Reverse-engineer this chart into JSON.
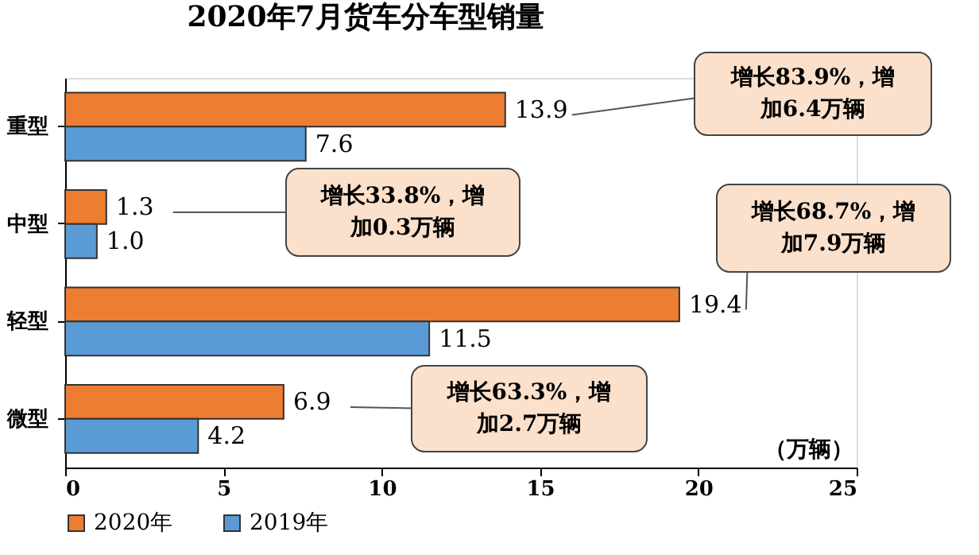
{
  "chart_data": {
    "type": "bar",
    "orientation": "horizontal",
    "title": "2020年7月货车分车型销量",
    "xlabel": "（万辆）",
    "categories": [
      "重型",
      "中型",
      "轻型",
      "微型"
    ],
    "series": [
      {
        "name": "2020年",
        "color": "#ed7d31",
        "values": [
          13.9,
          1.3,
          19.4,
          6.9
        ],
        "value_labels": [
          "13.9",
          "1.3",
          "19.4",
          "6.9"
        ]
      },
      {
        "name": "2019年",
        "color": "#5b9bd5",
        "values": [
          7.6,
          1.0,
          11.5,
          4.2
        ],
        "value_labels": [
          "7.6",
          "1.0",
          "11.5",
          "4.2"
        ]
      }
    ],
    "xlim": [
      0,
      25
    ],
    "xticks": [
      0,
      5,
      10,
      15,
      20,
      25
    ],
    "grid": false,
    "legend": "bottom",
    "annotations": [
      "增长83.9%，增加6.4万辆",
      "增长33.8%，增加0.3万辆",
      "增长68.7%，增加7.9万辆",
      "增长63.3%，增加2.7万辆"
    ]
  }
}
